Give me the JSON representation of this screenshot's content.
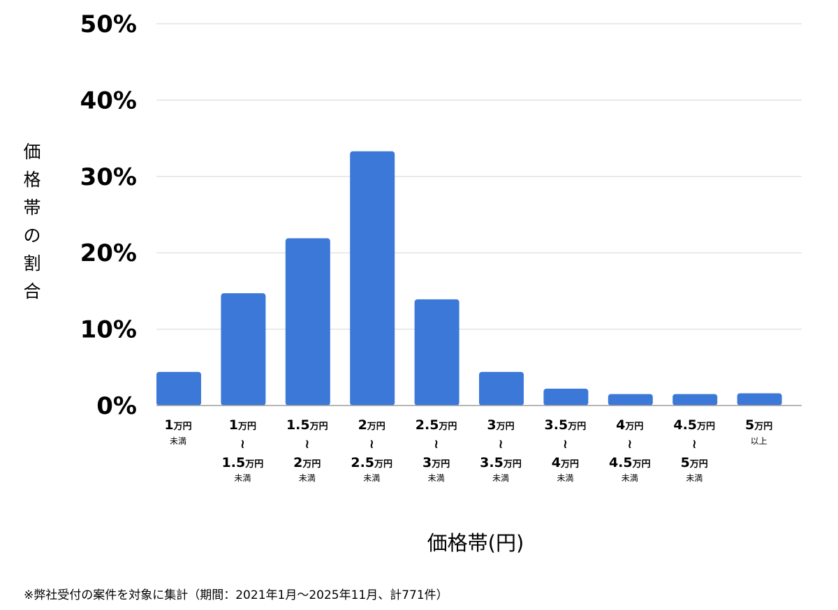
{
  "chart_data": {
    "type": "bar",
    "ylabel": "価格帯の割合",
    "xlabel": "価格帯(円)",
    "ylim": [
      0,
      50
    ],
    "yticks": [
      "0%",
      "10%",
      "20%",
      "30%",
      "40%",
      "50%"
    ],
    "ytick_values": [
      0,
      10,
      20,
      30,
      40,
      50
    ],
    "grid": true,
    "bar_color": "#3c78d8",
    "categories": [
      {
        "lines": [
          {
            "num": "1",
            "unit": "万円"
          }
        ],
        "note": "未満"
      },
      {
        "lines": [
          {
            "num": "1",
            "unit": "万円"
          },
          {
            "num": "1.5",
            "unit": "万円"
          }
        ],
        "note": "未満"
      },
      {
        "lines": [
          {
            "num": "1.5",
            "unit": "万円"
          },
          {
            "num": "2",
            "unit": "万円"
          }
        ],
        "note": "未満"
      },
      {
        "lines": [
          {
            "num": "2",
            "unit": "万円"
          },
          {
            "num": "2.5",
            "unit": "万円"
          }
        ],
        "note": "未満"
      },
      {
        "lines": [
          {
            "num": "2.5",
            "unit": "万円"
          },
          {
            "num": "3",
            "unit": "万円"
          }
        ],
        "note": "未満"
      },
      {
        "lines": [
          {
            "num": "3",
            "unit": "万円"
          },
          {
            "num": "3.5",
            "unit": "万円"
          }
        ],
        "note": "未満"
      },
      {
        "lines": [
          {
            "num": "3.5",
            "unit": "万円"
          },
          {
            "num": "4",
            "unit": "万円"
          }
        ],
        "note": "未満"
      },
      {
        "lines": [
          {
            "num": "4",
            "unit": "万円"
          },
          {
            "num": "4.5",
            "unit": "万円"
          }
        ],
        "note": "未満"
      },
      {
        "lines": [
          {
            "num": "4.5",
            "unit": "万円"
          },
          {
            "num": "5",
            "unit": "万円"
          }
        ],
        "note": "未満"
      },
      {
        "lines": [
          {
            "num": "5",
            "unit": "万円"
          }
        ],
        "note": "以上"
      }
    ],
    "values": [
      4.4,
      14.7,
      21.9,
      33.3,
      13.9,
      4.4,
      2.2,
      1.5,
      1.5,
      1.6
    ]
  },
  "footnote": "※弊社受付の案件を対象に集計（期間：2021年1月～2025年11月、計771件）"
}
